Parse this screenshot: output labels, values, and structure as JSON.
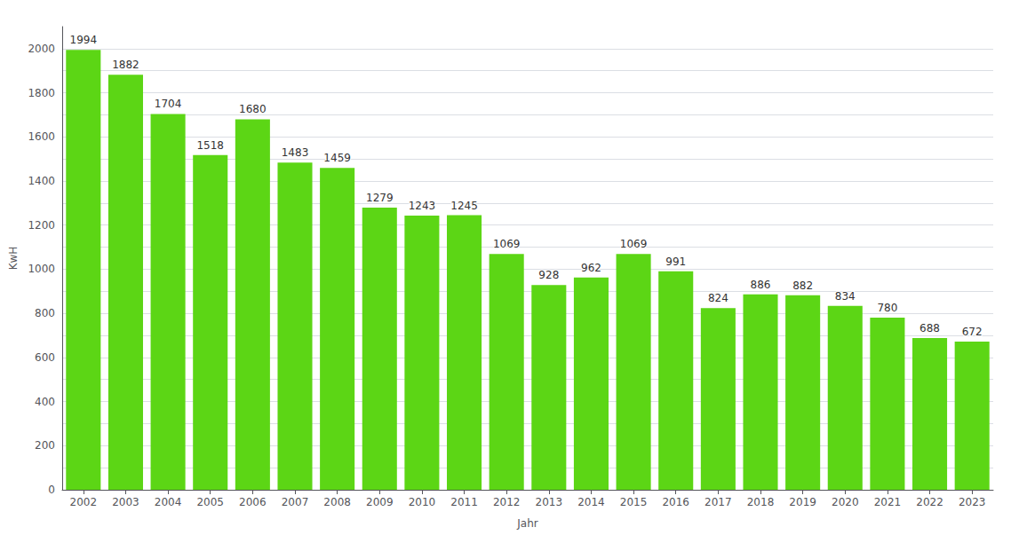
{
  "chart_data": {
    "type": "bar",
    "categories": [
      "2002",
      "2003",
      "2004",
      "2005",
      "2006",
      "2007",
      "2008",
      "2009",
      "2010",
      "2011",
      "2012",
      "2013",
      "2014",
      "2015",
      "2016",
      "2017",
      "2018",
      "2019",
      "2020",
      "2021",
      "2022",
      "2023"
    ],
    "values": [
      1994,
      1882,
      1704,
      1518,
      1680,
      1483,
      1459,
      1279,
      1243,
      1245,
      1069,
      928,
      962,
      1069,
      991,
      824,
      886,
      882,
      834,
      780,
      688,
      672
    ],
    "color": "#5cd615",
    "xlabel": "Jahr",
    "ylabel": "KwH",
    "ylim": [
      0,
      2100
    ],
    "yticks": [
      0,
      {
        "value": 100,
        "label": ""
      },
      200,
      {
        "value": 300,
        "label": ""
      },
      400,
      {
        "value": 500,
        "label": ""
      },
      600,
      {
        "value": 700,
        "label": ""
      },
      800,
      {
        "value": 900,
        "label": ""
      },
      1000,
      {
        "value": 1100,
        "label": ""
      },
      1200,
      {
        "value": 1300,
        "label": ""
      },
      1400,
      {
        "value": 1500,
        "label": ""
      },
      1600,
      {
        "value": 1700,
        "label": ""
      },
      1800,
      {
        "value": 1900,
        "label": ""
      },
      2000
    ],
    "grid": true,
    "data_labels": true
  }
}
